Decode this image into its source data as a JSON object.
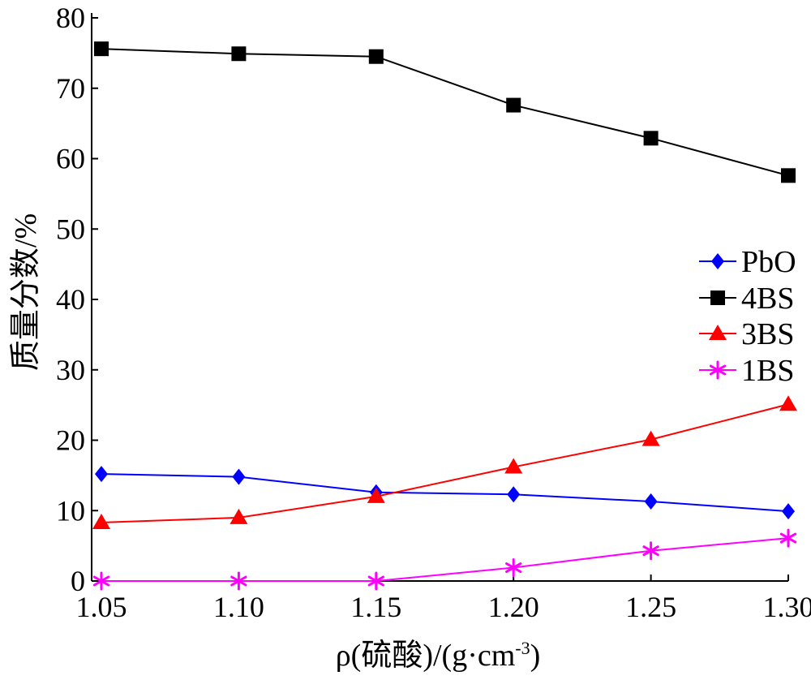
{
  "chart_data": {
    "type": "line",
    "title": "",
    "xlabel": "ρ(硫酸)/(g·cm",
    "xlabel_sup": "-3",
    "xlabel_close": ")",
    "ylabel": "质量分数/%",
    "x": [
      1.05,
      1.1,
      1.15,
      1.2,
      1.25,
      1.3
    ],
    "x_tick_labels": [
      "1.05",
      "1.10",
      "1.15",
      "1.20",
      "1.25",
      "1.30"
    ],
    "y_tick_labels": [
      "0",
      "10",
      "20",
      "30",
      "40",
      "50",
      "60",
      "70",
      "80"
    ],
    "xlim": [
      1.05,
      1.3
    ],
    "ylim": [
      0,
      80
    ],
    "grid": false,
    "legend_position": "right",
    "series": [
      {
        "name": "PbO",
        "color": "#0000ff",
        "marker": "diamond",
        "values": [
          15.2,
          14.8,
          12.6,
          12.3,
          11.3,
          9.9
        ]
      },
      {
        "name": "4BS",
        "color": "#000000",
        "marker": "square",
        "values": [
          75.6,
          74.9,
          74.5,
          67.6,
          62.9,
          57.6
        ]
      },
      {
        "name": "3BS",
        "color": "#ff0000",
        "marker": "triangle",
        "values": [
          8.3,
          9.0,
          12.0,
          16.2,
          20.1,
          25.1
        ]
      },
      {
        "name": "1BS",
        "color": "#ff00ff",
        "marker": "asterisk",
        "values": [
          0.0,
          0.0,
          0.0,
          1.9,
          4.3,
          6.1
        ]
      }
    ]
  }
}
